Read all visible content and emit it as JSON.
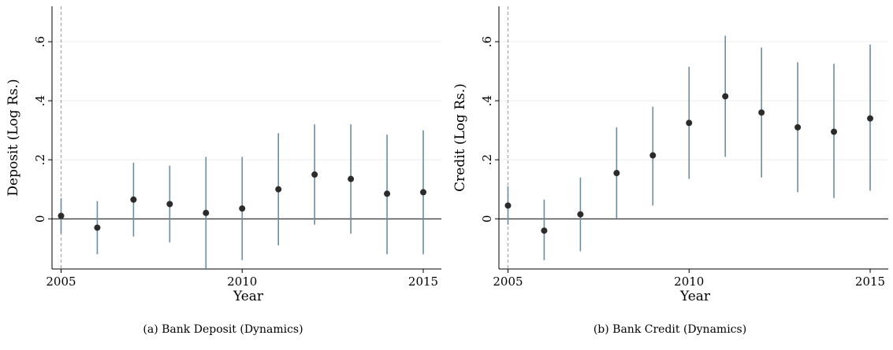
{
  "chart_data": [
    {
      "type": "scatter",
      "caption": "(a) Bank Deposit (Dynamics)",
      "xlabel": "Year",
      "ylabel": "Deposit (Log Rs.)",
      "xlim": [
        2004.75,
        2015.5
      ],
      "ylim": [
        -0.17,
        0.72
      ],
      "xticks": [
        2005,
        2010,
        2015
      ],
      "xtick_labels": [
        "2005",
        "2010",
        "2015"
      ],
      "yticks": [
        0,
        0.2,
        0.4,
        0.6
      ],
      "ytick_labels": [
        "0",
        ".2",
        ".4",
        ".6"
      ],
      "grid": true,
      "reference_vline": 2005,
      "reference_hline": 0,
      "points": [
        {
          "x": 2005,
          "y": 0.01,
          "lo": -0.05,
          "hi": 0.07
        },
        {
          "x": 2006,
          "y": -0.03,
          "lo": -0.12,
          "hi": 0.06
        },
        {
          "x": 2007,
          "y": 0.065,
          "lo": -0.06,
          "hi": 0.19
        },
        {
          "x": 2008,
          "y": 0.05,
          "lo": -0.08,
          "hi": 0.18
        },
        {
          "x": 2009,
          "y": 0.02,
          "lo": -0.17,
          "hi": 0.21
        },
        {
          "x": 2010,
          "y": 0.035,
          "lo": -0.14,
          "hi": 0.21
        },
        {
          "x": 2011,
          "y": 0.1,
          "lo": -0.09,
          "hi": 0.29
        },
        {
          "x": 2012,
          "y": 0.15,
          "lo": -0.02,
          "hi": 0.32
        },
        {
          "x": 2013,
          "y": 0.135,
          "lo": -0.05,
          "hi": 0.32
        },
        {
          "x": 2014,
          "y": 0.085,
          "lo": -0.12,
          "hi": 0.285
        },
        {
          "x": 2015,
          "y": 0.09,
          "lo": -0.12,
          "hi": 0.3
        }
      ],
      "colors": {
        "point": "#2b2b2b",
        "ci": "#6b8da0",
        "ref_line": "#aaaaaa",
        "grid": "#ececec"
      }
    },
    {
      "type": "scatter",
      "caption": "(b) Bank Credit (Dynamics)",
      "xlabel": "Year",
      "ylabel": "Credit (Log Rs.)",
      "xlim": [
        2004.75,
        2015.5
      ],
      "ylim": [
        -0.17,
        0.72
      ],
      "xticks": [
        2005,
        2010,
        2015
      ],
      "xtick_labels": [
        "2005",
        "2010",
        "2015"
      ],
      "yticks": [
        0,
        0.2,
        0.4,
        0.6
      ],
      "ytick_labels": [
        "0",
        ".2",
        ".4",
        ".6"
      ],
      "grid": true,
      "reference_vline": 2005,
      "reference_hline": 0,
      "points": [
        {
          "x": 2005,
          "y": 0.045,
          "lo": -0.02,
          "hi": 0.11
        },
        {
          "x": 2006,
          "y": -0.04,
          "lo": -0.14,
          "hi": 0.065
        },
        {
          "x": 2007,
          "y": 0.015,
          "lo": -0.11,
          "hi": 0.14
        },
        {
          "x": 2008,
          "y": 0.155,
          "lo": 0.0,
          "hi": 0.31
        },
        {
          "x": 2009,
          "y": 0.215,
          "lo": 0.045,
          "hi": 0.38
        },
        {
          "x": 2010,
          "y": 0.325,
          "lo": 0.135,
          "hi": 0.515
        },
        {
          "x": 2011,
          "y": 0.415,
          "lo": 0.21,
          "hi": 0.62
        },
        {
          "x": 2012,
          "y": 0.36,
          "lo": 0.14,
          "hi": 0.58
        },
        {
          "x": 2013,
          "y": 0.31,
          "lo": 0.09,
          "hi": 0.53
        },
        {
          "x": 2014,
          "y": 0.295,
          "lo": 0.07,
          "hi": 0.525
        },
        {
          "x": 2015,
          "y": 0.34,
          "lo": 0.095,
          "hi": 0.59
        }
      ],
      "colors": {
        "point": "#2b2b2b",
        "ci": "#6b8da0",
        "ref_line": "#aaaaaa",
        "grid": "#ececec"
      }
    }
  ]
}
